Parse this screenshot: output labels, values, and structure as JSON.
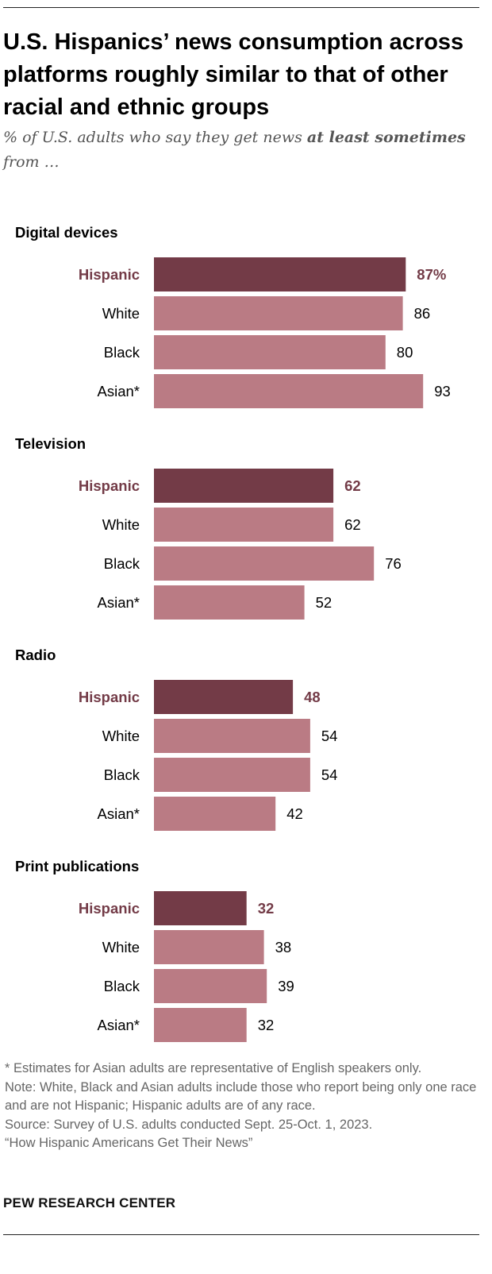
{
  "title": "U.S. Hispanics’ news consumption across platforms roughly similar to that of other racial and ethnic groups",
  "subtitle": {
    "before": "% of U.S. adults who say they get news ",
    "emphasis": "at least sometimes",
    "after": " from …"
  },
  "colors": {
    "highlight_bar": "#733b47",
    "other_bar": "#ba7b84",
    "highlight_text": "#733b47",
    "text": "#000000"
  },
  "chart_data": {
    "type": "bar",
    "orientation": "horizontal",
    "categories": [
      "Hispanic",
      "White",
      "Black",
      "Asian*"
    ],
    "highlight_category": "Hispanic",
    "value_suffix_first": "%",
    "xlim": [
      0,
      100
    ],
    "grid": false,
    "groups": [
      {
        "name": "Digital devices",
        "values": [
          87,
          86,
          80,
          93
        ]
      },
      {
        "name": "Television",
        "values": [
          62,
          62,
          76,
          52
        ]
      },
      {
        "name": "Radio",
        "values": [
          48,
          54,
          54,
          42
        ]
      },
      {
        "name": "Print publications",
        "values": [
          32,
          38,
          39,
          32
        ]
      }
    ]
  },
  "footnote": "* Estimates for Asian adults are representative of English speakers only.",
  "note": "Note: White, Black and Asian adults include those who report being only one race and are not Hispanic; Hispanic adults are of any race.",
  "source": "Source: Survey of U.S. adults conducted Sept. 25-Oct. 1, 2023.",
  "report": "“How Hispanic Americans Get Their News”",
  "brand": "PEW RESEARCH CENTER"
}
